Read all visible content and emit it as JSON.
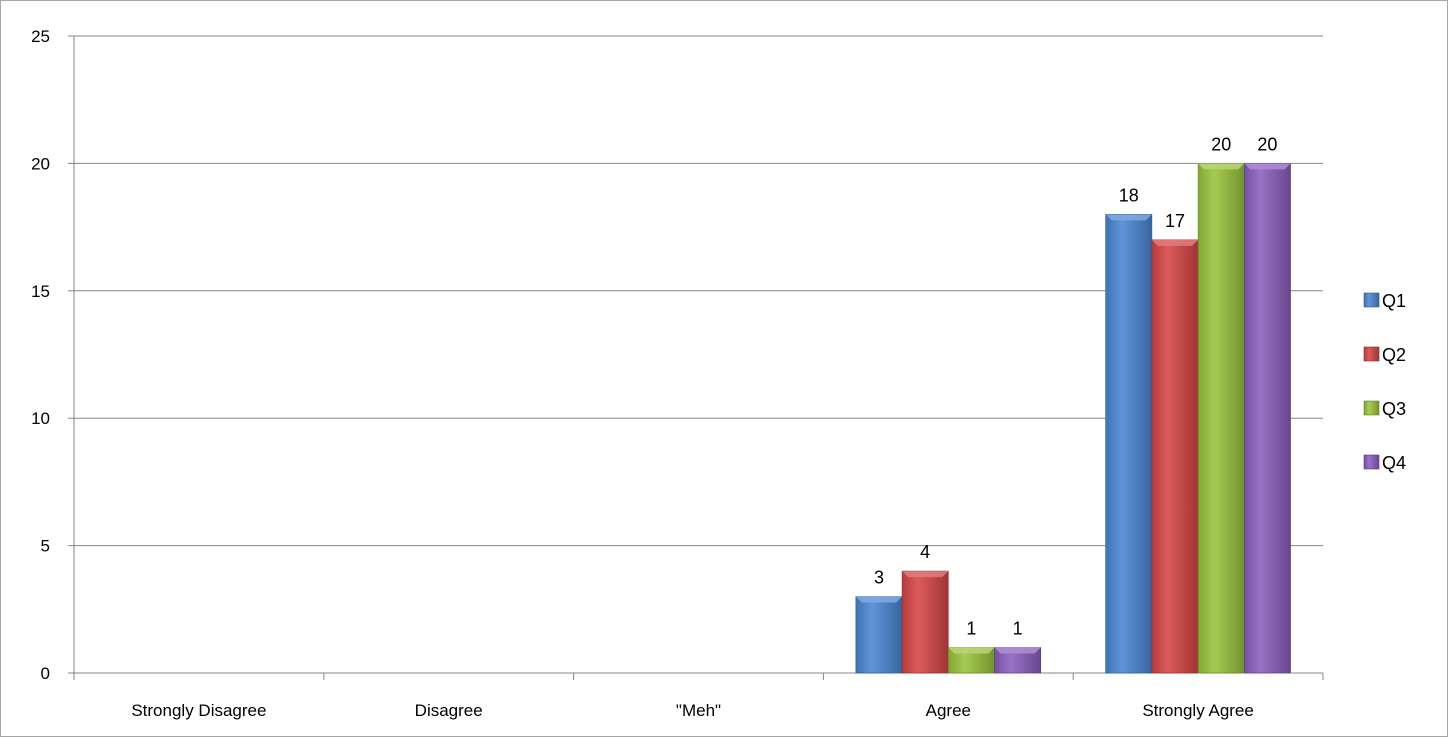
{
  "chart_data": {
    "type": "bar",
    "title": "",
    "xlabel": "",
    "ylabel": "",
    "ylim": [
      0,
      25
    ],
    "yticks": [
      0,
      5,
      10,
      15,
      20,
      25
    ],
    "grid": true,
    "legend_position": "right",
    "categories": [
      "Strongly Disagree",
      "Disagree",
      "\"Meh\"",
      "Agree",
      "Strongly Agree"
    ],
    "series": [
      {
        "name": "Q1",
        "color": "#4a86d4",
        "values": [
          0,
          0,
          0,
          3,
          18
        ]
      },
      {
        "name": "Q2",
        "color": "#d64545",
        "values": [
          0,
          0,
          0,
          4,
          17
        ]
      },
      {
        "name": "Q3",
        "color": "#9ac43c",
        "values": [
          0,
          0,
          0,
          1,
          20
        ]
      },
      {
        "name": "Q4",
        "color": "#8a5fbf",
        "values": [
          0,
          0,
          0,
          1,
          20
        ]
      }
    ]
  }
}
